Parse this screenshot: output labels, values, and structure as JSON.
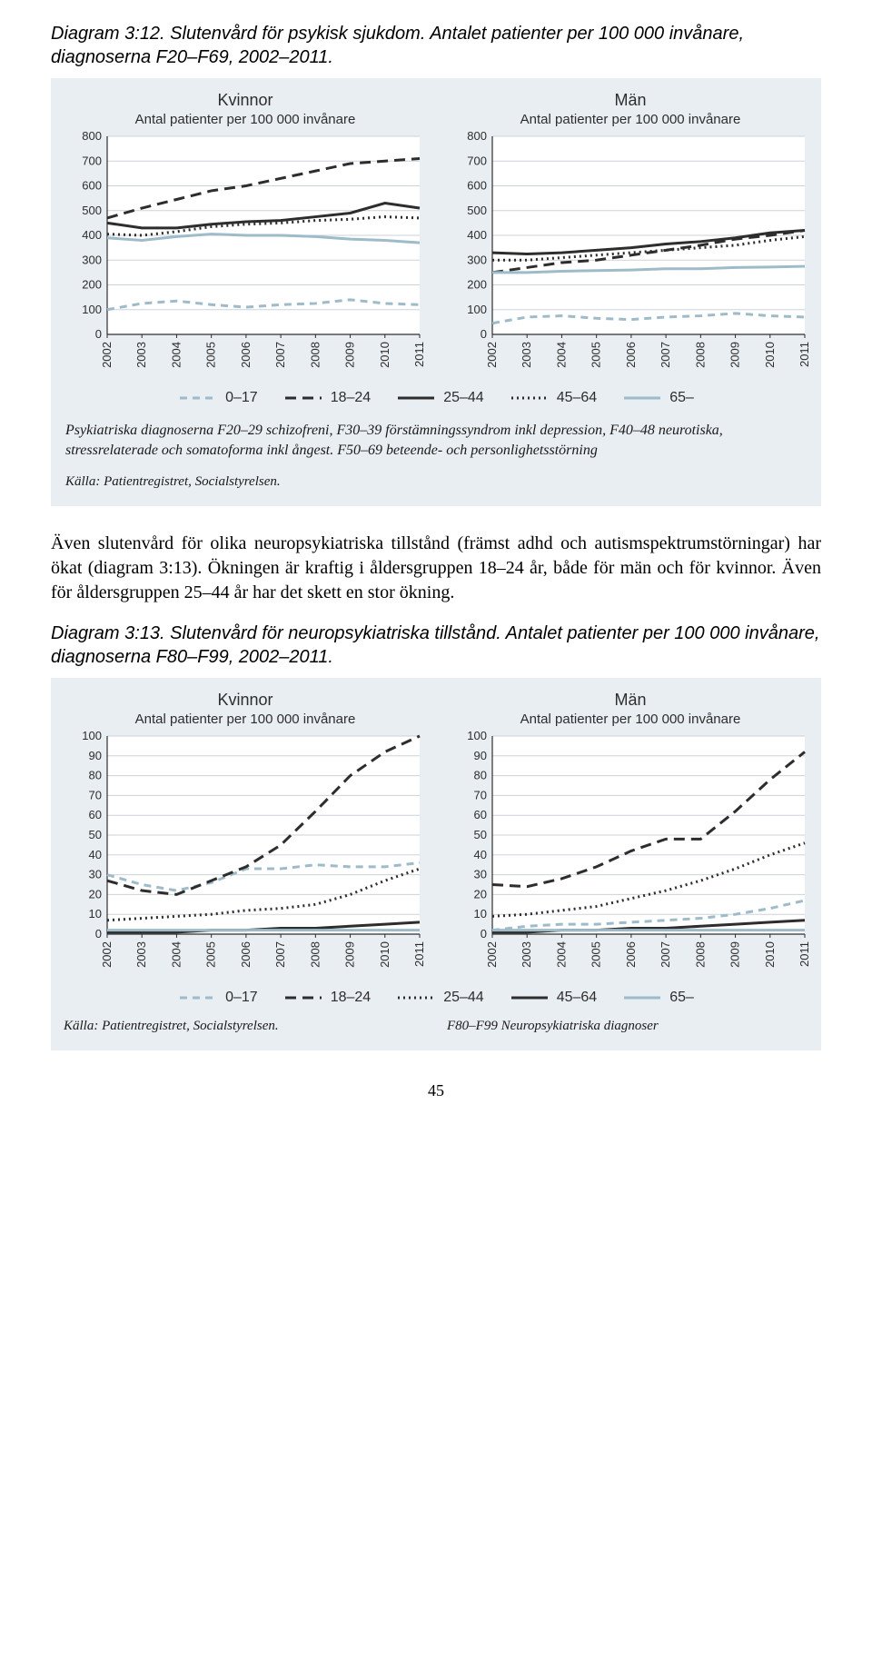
{
  "caption312": "Diagram 3:12. Slutenvård för psykisk sjukdom. Antalet patienter per 100 000 invånare, diagnoserna F20–F69, 2002–2011.",
  "caption313": "Diagram 3:13. Slutenvård för neuropsykiatriska tillstånd. Antalet patienter per 100 000 invånare, diagnoserna F80–F99, 2002–2011.",
  "bodytext": "Även slutenvård för olika neuropsykiatriska tillstånd (främst adhd och autismspektrumstörningar) har ökat (diagram 3:13). Ökningen är kraftig i åldersgruppen 18–24 år, både för män och för kvinnor. Även för åldersgruppen 25–44 år har det skett en stor ökning.",
  "footnote312": "Psykiatriska diagnoserna F20–29 schizofreni, F30–39 förstämningssyndrom inkl depression, F40–48 neurotiska, stressrelaterade och somatoforma inkl ångest. F50–69 beteende- och personlighetsstörning",
  "source": "Källa: Patientregistret, Socialstyrelsen.",
  "foot_right_313": "F80–F99  Neuropsykiatriska diagnoser",
  "page_number": "45",
  "chart312": {
    "panelL_title": "Kvinnor",
    "panelR_title": "Män",
    "panel_sub": "Antal patienter per 100 000 invånare",
    "years": [
      "2002",
      "2003",
      "2004",
      "2005",
      "2006",
      "2007",
      "2008",
      "2009",
      "2010",
      "2011"
    ],
    "ylim": [
      0,
      800
    ],
    "ystep": 100,
    "bg": "#ffffff",
    "panelbg": "#e9eef2",
    "grid_color": "#cbd3da",
    "axis_color": "#2d2d2d",
    "tick_fs": 13,
    "series_legend": [
      {
        "name": "0–17",
        "color": "#9dbbc9",
        "dash": "8 6",
        "w": 3
      },
      {
        "name": "18–24",
        "color": "#2d2d2d",
        "dash": "12 7",
        "w": 3
      },
      {
        "name": "25–44",
        "color": "#2d2d2d",
        "dash": "",
        "w": 3
      },
      {
        "name": "45–64",
        "color": "#2d2d2d",
        "dash": "2 4",
        "w": 3
      },
      {
        "name": "65–",
        "color": "#9dbbc9",
        "dash": "",
        "w": 3
      }
    ],
    "left": {
      "s0_17": [
        100,
        125,
        135,
        120,
        110,
        120,
        125,
        140,
        125,
        120
      ],
      "s18_24": [
        470,
        510,
        545,
        580,
        600,
        630,
        660,
        690,
        700,
        710
      ],
      "s25_44": [
        450,
        430,
        430,
        445,
        455,
        460,
        475,
        490,
        530,
        510
      ],
      "s45_64": [
        405,
        400,
        415,
        435,
        445,
        450,
        460,
        465,
        475,
        470
      ],
      "s65": [
        390,
        380,
        395,
        405,
        400,
        400,
        395,
        385,
        380,
        370
      ]
    },
    "right": {
      "s0_17": [
        45,
        70,
        75,
        65,
        60,
        70,
        75,
        85,
        75,
        70
      ],
      "s18_24": [
        250,
        270,
        290,
        300,
        320,
        340,
        360,
        385,
        400,
        420
      ],
      "s25_44": [
        330,
        325,
        330,
        340,
        350,
        365,
        375,
        390,
        410,
        420
      ],
      "s45_64": [
        300,
        300,
        310,
        320,
        330,
        340,
        350,
        360,
        380,
        395
      ],
      "s65": [
        250,
        250,
        255,
        258,
        260,
        265,
        265,
        270,
        272,
        275
      ]
    }
  },
  "chart313": {
    "panelL_title": "Kvinnor",
    "panelR_title": "Män",
    "panel_sub": "Antal patienter per 100 000 invånare",
    "years": [
      "2002",
      "2003",
      "2004",
      "2005",
      "2006",
      "2007",
      "2008",
      "2009",
      "2010",
      "2011"
    ],
    "ylim": [
      0,
      100
    ],
    "ystep": 10,
    "bg": "#ffffff",
    "panelbg": "#e9eef2",
    "grid_color": "#cbd3da",
    "axis_color": "#2d2d2d",
    "tick_fs": 13,
    "series_legend": [
      {
        "name": "0–17",
        "color": "#9dbbc9",
        "dash": "8 6",
        "w": 3
      },
      {
        "name": "18–24",
        "color": "#2d2d2d",
        "dash": "12 7",
        "w": 3
      },
      {
        "name": "25–44",
        "color": "#2d2d2d",
        "dash": "2 4",
        "w": 3
      },
      {
        "name": "45–64",
        "color": "#2d2d2d",
        "dash": "",
        "w": 3
      },
      {
        "name": "65–",
        "color": "#9dbbc9",
        "dash": "",
        "w": 3
      }
    ],
    "left": {
      "s0_17": [
        30,
        25,
        22,
        26,
        33,
        33,
        35,
        34,
        34,
        36
      ],
      "s18_24": [
        27,
        22,
        20,
        27,
        34,
        45,
        62,
        80,
        92,
        100
      ],
      "s25_44": [
        7,
        8,
        9,
        10,
        12,
        13,
        15,
        20,
        27,
        33
      ],
      "s45_64": [
        1,
        1,
        1,
        2,
        2,
        3,
        3,
        4,
        5,
        6
      ],
      "s65": [
        2,
        2,
        2,
        2,
        2,
        2,
        2,
        2,
        2,
        2
      ]
    },
    "right": {
      "s0_17": [
        2,
        4,
        5,
        5,
        6,
        7,
        8,
        10,
        13,
        17
      ],
      "s18_24": [
        25,
        24,
        28,
        34,
        42,
        48,
        48,
        62,
        78,
        92
      ],
      "s25_44": [
        9,
        10,
        12,
        14,
        18,
        22,
        27,
        33,
        40,
        46
      ],
      "s45_64": [
        1,
        1,
        2,
        2,
        3,
        3,
        4,
        5,
        6,
        7
      ],
      "s65": [
        2,
        2,
        2,
        2,
        2,
        2,
        2,
        2,
        2,
        2
      ]
    }
  }
}
